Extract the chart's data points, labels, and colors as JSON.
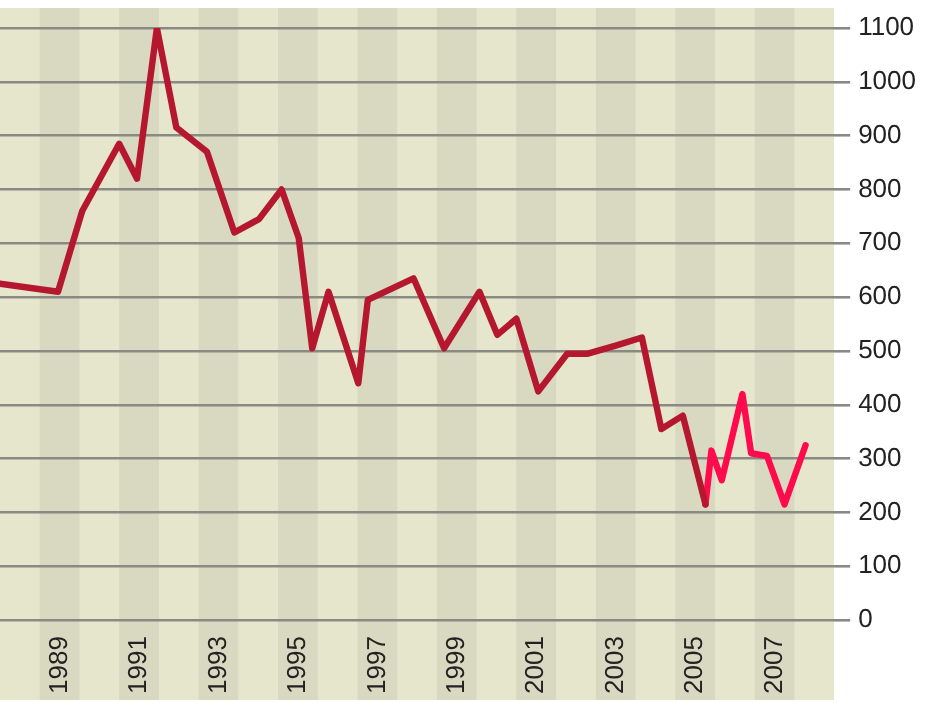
{
  "chart_data": {
    "type": "line",
    "xlim": [
      1988,
      2009
    ],
    "xticks": [
      {
        "value": 1989.5,
        "label": "1989"
      },
      {
        "value": 1991.5,
        "label": "1991"
      },
      {
        "value": 1993.5,
        "label": "1993"
      },
      {
        "value": 1995.5,
        "label": "1995"
      },
      {
        "value": 1997.5,
        "label": "1997"
      },
      {
        "value": 1999.5,
        "label": "1999"
      },
      {
        "value": 2001.5,
        "label": "2001"
      },
      {
        "value": 2003.5,
        "label": "2003"
      },
      {
        "value": 2005.5,
        "label": "2005"
      },
      {
        "value": 2007.5,
        "label": "2007"
      }
    ],
    "ylim": [
      0,
      1100
    ],
    "yticks": [
      0,
      100,
      200,
      300,
      400,
      500,
      600,
      700,
      800,
      900,
      1000,
      1100
    ],
    "grid": "y",
    "bands": [
      {
        "axis": "x",
        "from": 1989,
        "to": 1990,
        "color": "#d9d9c2"
      },
      {
        "axis": "x",
        "from": 1991,
        "to": 1992,
        "color": "#d9d9c2"
      },
      {
        "axis": "x",
        "from": 1993,
        "to": 1994,
        "color": "#d9d9c2"
      },
      {
        "axis": "x",
        "from": 1995,
        "to": 1996,
        "color": "#d9d9c2"
      },
      {
        "axis": "x",
        "from": 1997,
        "to": 1998,
        "color": "#d9d9c2"
      },
      {
        "axis": "x",
        "from": 1999,
        "to": 2000,
        "color": "#d9d9c2"
      },
      {
        "axis": "x",
        "from": 2001,
        "to": 2002,
        "color": "#d9d9c2"
      },
      {
        "axis": "x",
        "from": 2003,
        "to": 2004,
        "color": "#d9d9c2"
      },
      {
        "axis": "x",
        "from": 2005,
        "to": 2006,
        "color": "#d9d9c2"
      },
      {
        "axis": "x",
        "from": 2007,
        "to": 2008,
        "color": "#d9d9c2"
      }
    ],
    "legend": false,
    "marker": "none",
    "line_style": "solid",
    "series": [
      {
        "color": "#b5182e",
        "x": [
          1988.0,
          1989.46,
          1990.07,
          1991.0,
          1991.45,
          1991.95,
          1992.44,
          1993.21,
          1993.9,
          1994.52,
          1995.09,
          1995.52,
          1995.86,
          1996.27,
          1997.02,
          1997.26,
          1998.41,
          1999.18,
          2000.07,
          2000.52,
          2001.0,
          2001.55,
          2002.28,
          2002.8,
          2003.5,
          2004.16,
          2004.65,
          2005.19,
          2005.76
        ],
        "values": [
          625,
          610,
          760,
          885,
          820,
          1100,
          915,
          870,
          720,
          745,
          800,
          710,
          505,
          610,
          440,
          595,
          635,
          505,
          610,
          530,
          560,
          425,
          495,
          495,
          510,
          525,
          355,
          380,
          215
        ]
      },
      {
        "color": "#ff0a4d",
        "x": [
          2005.76,
          2005.91,
          2006.17,
          2006.69,
          2006.91,
          2007.31,
          2007.75,
          2008.28
        ],
        "values": [
          215,
          315,
          260,
          420,
          310,
          305,
          215,
          325
        ]
      }
    ]
  }
}
